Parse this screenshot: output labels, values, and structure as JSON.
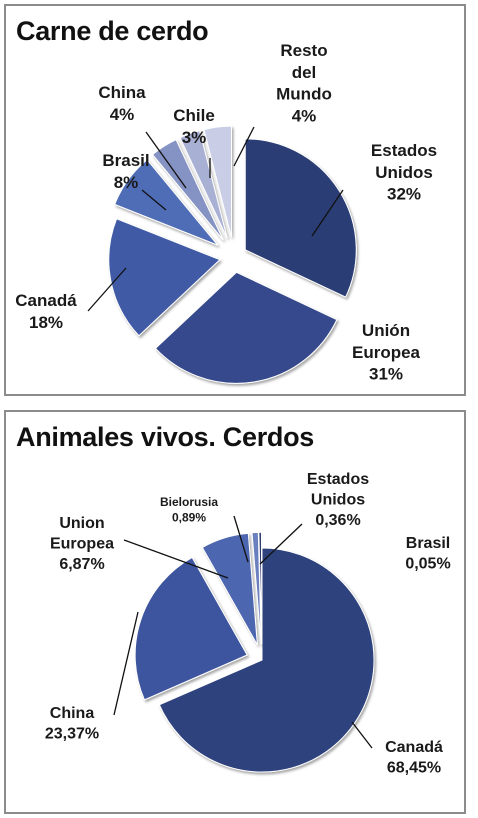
{
  "chart_data": [
    {
      "type": "pie",
      "title": "Carne de cerdo",
      "slices": [
        {
          "label": [
            "Estados",
            "Unidos"
          ],
          "pct": "32%",
          "value": 32,
          "color": "#2c3e74"
        },
        {
          "label": [
            "Unión",
            "Europea"
          ],
          "pct": "31%",
          "value": 31,
          "color": "#34498c"
        },
        {
          "label": [
            "Canadá"
          ],
          "pct": "18%",
          "value": 18,
          "color": "#3f5aa6"
        },
        {
          "label": [
            "Brasil"
          ],
          "pct": "8%",
          "value": 8,
          "color": "#506db7"
        },
        {
          "label": [
            "China"
          ],
          "pct": "4%",
          "value": 4,
          "color": "#8592c4"
        },
        {
          "label": [
            "Chile"
          ],
          "pct": "3%",
          "value": 3,
          "color": "#a8b0d4"
        },
        {
          "label": [
            "Resto",
            "del",
            "Mundo"
          ],
          "pct": "4%",
          "value": 4,
          "color": "#c9cee6"
        }
      ]
    },
    {
      "type": "pie",
      "title": "Animales vivos. Cerdos",
      "slices": [
        {
          "label": [
            "Canadá"
          ],
          "pct": "68,45%",
          "value": 68.45,
          "color": "#2f437e"
        },
        {
          "label": [
            "China"
          ],
          "pct": "23,37%",
          "value": 23.37,
          "color": "#3d559f"
        },
        {
          "label": [
            "Union",
            "Europea"
          ],
          "pct": "6,87%",
          "value": 6.87,
          "color": "#4d66b0"
        },
        {
          "label": [
            "Bielorusia"
          ],
          "pct": "0,89%",
          "value": 0.89,
          "color": "#6b7fc0"
        },
        {
          "label": [
            "Estados",
            "Unidos"
          ],
          "pct": "0,36%",
          "value": 0.36,
          "color": "#223366"
        },
        {
          "label": [
            "Brasil"
          ],
          "pct": "0,05%",
          "value": 0.05,
          "color": "#1a2a55"
        }
      ]
    }
  ]
}
